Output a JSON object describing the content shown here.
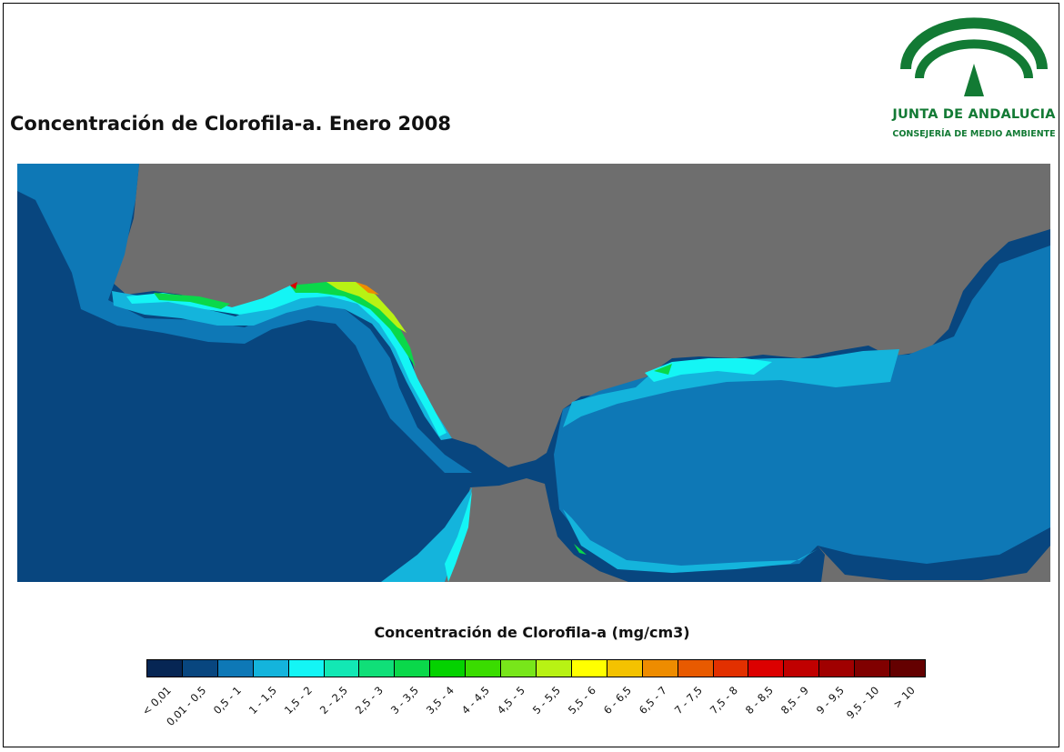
{
  "title": "Concentración de Clorofila-a. Enero 2008",
  "logo": {
    "name": "JUNTA DE ANDALUCIA",
    "subtitle": "CONSEJERÍA DE MEDIO AMBIENTE",
    "color": "#127a34"
  },
  "map": {
    "land_color": "#6e6e6e",
    "open_sea_color": "#08467f"
  },
  "legend": {
    "title": "Concentración de Clorofila-a (mg/cm3)",
    "classes": [
      {
        "label": "< 0,01",
        "color": "#062654"
      },
      {
        "label": "0,01 - 0,5",
        "color": "#08467f"
      },
      {
        "label": "0,5 - 1",
        "color": "#0e78b6"
      },
      {
        "label": "1 - 1,5",
        "color": "#14b4dc"
      },
      {
        "label": "1,5 - 2",
        "color": "#14f5f5"
      },
      {
        "label": "2 - 2,5",
        "color": "#12e8b4"
      },
      {
        "label": "2,5 - 3",
        "color": "#10df78"
      },
      {
        "label": "3 - 3,5",
        "color": "#0ad84a"
      },
      {
        "label": "3,5 - 4",
        "color": "#04d200"
      },
      {
        "label": "4 - 4,5",
        "color": "#3adc00"
      },
      {
        "label": "4,5 - 5",
        "color": "#78e61a"
      },
      {
        "label": "5 - 5,5",
        "color": "#b8f214"
      },
      {
        "label": "5,5 - 6",
        "color": "#ffff00"
      },
      {
        "label": "6 - 6,5",
        "color": "#f4c200"
      },
      {
        "label": "6,5 - 7",
        "color": "#ee8c00"
      },
      {
        "label": "7 - 7,5",
        "color": "#e85a00"
      },
      {
        "label": "7,5 - 8",
        "color": "#e23000"
      },
      {
        "label": "8 - 8,5",
        "color": "#dc0000"
      },
      {
        "label": "8,5 - 9",
        "color": "#c00000"
      },
      {
        "label": "9 - 9,5",
        "color": "#a00000"
      },
      {
        "label": "9,5 - 10",
        "color": "#800000"
      },
      {
        "label": "> 10",
        "color": "#640000"
      }
    ]
  }
}
